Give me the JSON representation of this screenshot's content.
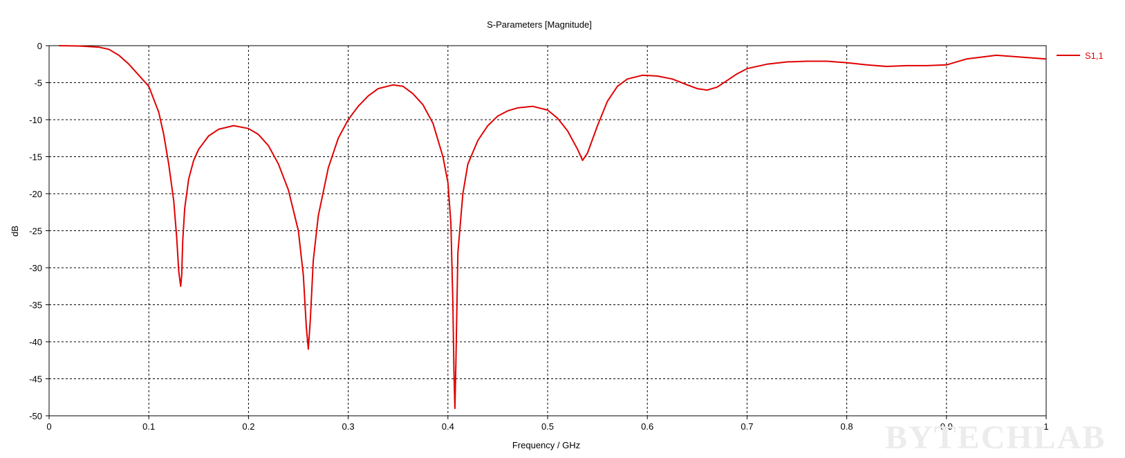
{
  "chart_data": {
    "type": "line",
    "title": "S-Parameters [Magnitude]",
    "xlabel": "Frequency / GHz",
    "ylabel": "dB",
    "xlim": [
      0,
      1
    ],
    "ylim": [
      -50,
      0
    ],
    "xticks": [
      0,
      0.1,
      0.2,
      0.3,
      0.4,
      0.5,
      0.6,
      0.7,
      0.8,
      0.9,
      1
    ],
    "xtick_labels": [
      "0",
      "0.1",
      "0.2",
      "0.3",
      "0.4",
      "0.5",
      "0.6",
      "0.7",
      "0.8",
      "0.9",
      "1"
    ],
    "yticks": [
      0,
      -5,
      -10,
      -15,
      -20,
      -25,
      -30,
      -35,
      -40,
      -45,
      -50
    ],
    "ytick_labels": [
      "0",
      "-5",
      "-10",
      "-15",
      "-20",
      "-25",
      "-30",
      "-35",
      "-40",
      "-45",
      "-50"
    ],
    "grid": true,
    "legend_position": "right",
    "series": [
      {
        "name": "S1,1",
        "color": "#e00000",
        "x": [
          0.01,
          0.03,
          0.05,
          0.06,
          0.07,
          0.08,
          0.09,
          0.1,
          0.11,
          0.115,
          0.12,
          0.125,
          0.128,
          0.13,
          0.132,
          0.133,
          0.134,
          0.136,
          0.14,
          0.145,
          0.15,
          0.16,
          0.17,
          0.185,
          0.2,
          0.21,
          0.22,
          0.23,
          0.24,
          0.25,
          0.255,
          0.258,
          0.26,
          0.262,
          0.265,
          0.27,
          0.28,
          0.29,
          0.3,
          0.31,
          0.32,
          0.33,
          0.345,
          0.355,
          0.365,
          0.375,
          0.385,
          0.395,
          0.4,
          0.403,
          0.405,
          0.406,
          0.407,
          0.408,
          0.41,
          0.415,
          0.42,
          0.43,
          0.44,
          0.45,
          0.46,
          0.47,
          0.485,
          0.5,
          0.51,
          0.52,
          0.53,
          0.535,
          0.54,
          0.55,
          0.56,
          0.57,
          0.58,
          0.595,
          0.61,
          0.625,
          0.64,
          0.65,
          0.66,
          0.67,
          0.68,
          0.69,
          0.7,
          0.72,
          0.74,
          0.76,
          0.78,
          0.8,
          0.82,
          0.84,
          0.86,
          0.88,
          0.9,
          0.92,
          0.95,
          0.97,
          1.0
        ],
        "y": [
          0,
          -0.05,
          -0.2,
          -0.5,
          -1.3,
          -2.5,
          -4.0,
          -5.5,
          -9.0,
          -12.0,
          -16.0,
          -21.0,
          -26.0,
          -30.5,
          -32.5,
          -31.0,
          -26.5,
          -22.0,
          -18.0,
          -15.5,
          -14.0,
          -12.2,
          -11.3,
          -10.8,
          -11.2,
          -12.0,
          -13.5,
          -16.0,
          -19.5,
          -25.0,
          -31.0,
          -38.0,
          -41.0,
          -37.0,
          -29.0,
          -23.0,
          -16.5,
          -12.5,
          -10.0,
          -8.2,
          -6.8,
          -5.8,
          -5.3,
          -5.5,
          -6.5,
          -8.0,
          -10.5,
          -15.0,
          -18.5,
          -24.0,
          -35.0,
          -44.0,
          -49.0,
          -43.0,
          -28.0,
          -20.0,
          -16.0,
          -12.8,
          -10.8,
          -9.5,
          -8.8,
          -8.4,
          -8.2,
          -8.7,
          -9.8,
          -11.5,
          -14.0,
          -15.5,
          -14.5,
          -10.8,
          -7.5,
          -5.5,
          -4.5,
          -4.0,
          -4.1,
          -4.5,
          -5.3,
          -5.8,
          -6.0,
          -5.6,
          -4.7,
          -3.8,
          -3.1,
          -2.5,
          -2.2,
          -2.1,
          -2.1,
          -2.3,
          -2.6,
          -2.8,
          -2.7,
          -2.7,
          -2.6,
          -1.8,
          -1.3,
          -1.5,
          -1.8
        ]
      }
    ],
    "watermark": "BYTECHLAB"
  }
}
